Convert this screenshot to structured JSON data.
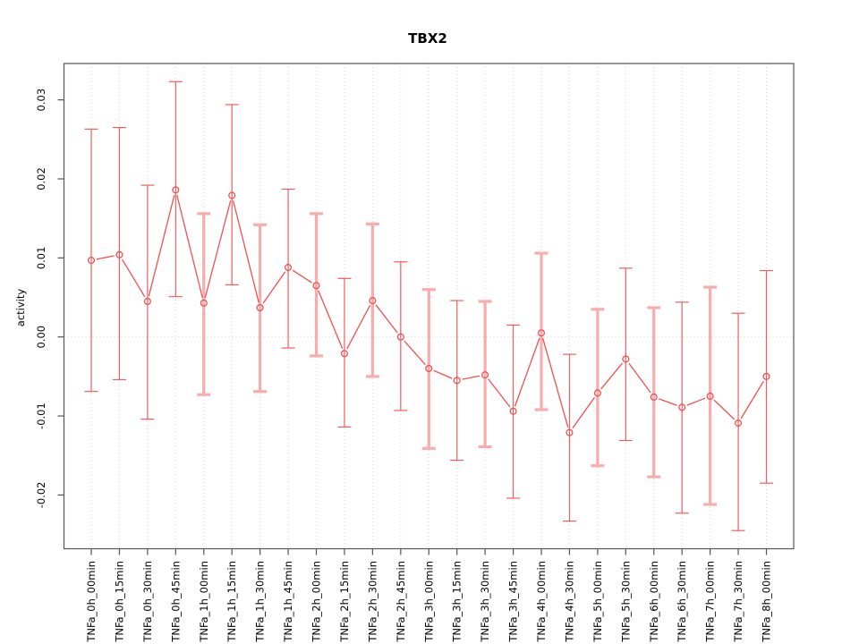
{
  "figure": {
    "title": "TBX2"
  },
  "chart_data": {
    "type": "line",
    "title": "TBX2",
    "xlabel": "",
    "ylabel": "activity",
    "legend": "none",
    "grid": "vertical dotted gridline at every category; dotted horizontal line at y=0",
    "ylim": [
      -0.0268,
      0.0346
    ],
    "yticks": [
      "-0.02",
      "-0.01",
      "0.00",
      "0.01",
      "0.02",
      "0.03"
    ],
    "categories": [
      "TNFa_0h_00min",
      "TNFa_0h_15min",
      "TNFa_0h_30min",
      "TNFa_0h_45min",
      "TNFa_1h_00min",
      "TNFa_1h_15min",
      "TNFa_1h_30min",
      "TNFa_1h_45min",
      "TNFa_2h_00min",
      "TNFa_2h_15min",
      "TNFa_2h_30min",
      "TNFa_2h_45min",
      "TNFa_3h_00min",
      "TNFa_3h_15min",
      "TNFa_3h_30min",
      "TNFa_3h_45min",
      "TNFa_4h_00min",
      "TNFa_4h_30min",
      "TNFa_5h_00min",
      "TNFa_5h_30min",
      "TNFa_6h_00min",
      "TNFa_6h_30min",
      "TNFa_7h_00min",
      "TNFa_7h_30min",
      "TNFa_8h_00min"
    ],
    "series": [
      {
        "name": "activity",
        "values": [
          0.0097,
          0.0104,
          0.0045,
          0.0186,
          0.0043,
          0.0179,
          0.0037,
          0.0088,
          0.0065,
          -0.0021,
          0.0046,
          0.0,
          -0.004,
          -0.0055,
          -0.0048,
          -0.0094,
          0.0005,
          -0.0121,
          -0.0071,
          -0.0028,
          -0.0076,
          -0.0089,
          -0.0075,
          -0.0109,
          -0.005
        ],
        "error_lower": [
          -0.0069,
          -0.0054,
          -0.0104,
          0.0051,
          -0.0073,
          0.0066,
          -0.0069,
          -0.0014,
          -0.0024,
          -0.0114,
          -0.005,
          -0.0093,
          -0.0141,
          -0.0156,
          -0.0139,
          -0.0204,
          -0.0092,
          -0.0233,
          -0.0163,
          -0.0131,
          -0.0177,
          -0.0223,
          -0.0212,
          -0.0245,
          -0.0185
        ],
        "error_upper": [
          0.0263,
          0.0265,
          0.0192,
          0.0323,
          0.0156,
          0.0294,
          0.0142,
          0.0187,
          0.0156,
          0.0074,
          0.0143,
          0.0095,
          0.006,
          0.0046,
          0.0045,
          0.0015,
          0.0106,
          -0.0022,
          0.0035,
          0.0087,
          0.0037,
          0.0044,
          0.0063,
          0.003,
          0.0084
        ]
      }
    ],
    "thick_error_bar_points": [
      5,
      7,
      9,
      11,
      13,
      15,
      17,
      19,
      21,
      23
    ],
    "marker": "open-circle",
    "colors": {
      "line": "#f05050",
      "errorbar": "#f15e5e",
      "errorbar_light": "#f8acac",
      "grid": "#d6d6d6",
      "zero_line": "#d9cccc",
      "frame": "#555555",
      "tick": "#555555",
      "text": "#000000"
    }
  }
}
